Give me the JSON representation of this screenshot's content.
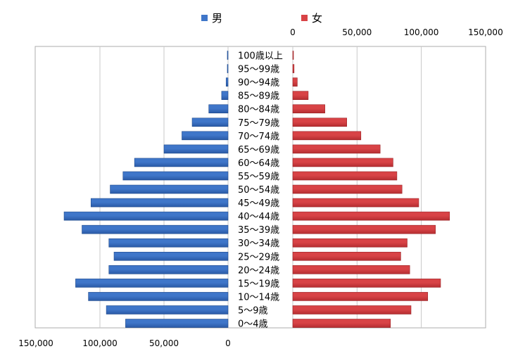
{
  "legend": {
    "male_label": "男",
    "female_label": "女"
  },
  "colors": {
    "male": "#3f76c9",
    "male_dark": "#2a5aa6",
    "female": "#d84346",
    "female_dark": "#b52d31",
    "frame": "#aeaeae",
    "grid": "#c9c9c9"
  },
  "chart_data": {
    "type": "bar",
    "orientation": "horizontal",
    "title": "",
    "categories": [
      "0～4歳",
      "5～9歳",
      "10～14歳",
      "15～19歳",
      "20～24歳",
      "25～29歳",
      "30～34歳",
      "35～39歳",
      "40～44歳",
      "45～49歳",
      "50～54歳",
      "55～59歳",
      "60～64歳",
      "65～69歳",
      "70～74歳",
      "75～79歳",
      "80～84歳",
      "85～89歳",
      "90～94歳",
      "95～99歳",
      "100歳以上"
    ],
    "series": [
      {
        "name": "男",
        "values": [
          80000,
          95000,
          109000,
          119000,
          93000,
          89000,
          93000,
          114000,
          128000,
          107000,
          92000,
          82000,
          73000,
          50000,
          36000,
          28000,
          15000,
          5000,
          1500,
          500,
          100
        ]
      },
      {
        "name": "女",
        "values": [
          76000,
          92000,
          105000,
          115000,
          91000,
          84000,
          89000,
          111000,
          122000,
          98000,
          85000,
          81000,
          78000,
          68000,
          53000,
          42000,
          25000,
          12000,
          3500,
          1000,
          200
        ]
      }
    ],
    "male_axis": {
      "range": [
        0,
        150000
      ],
      "ticks": [
        "150,000",
        "100,000",
        "50,000",
        "0"
      ],
      "position": "bottom"
    },
    "female_axis": {
      "range": [
        0,
        150000
      ],
      "ticks": [
        "0",
        "50,000",
        "100,000",
        "150,000"
      ],
      "position": "top"
    },
    "legend_position": "top",
    "grid": true
  }
}
